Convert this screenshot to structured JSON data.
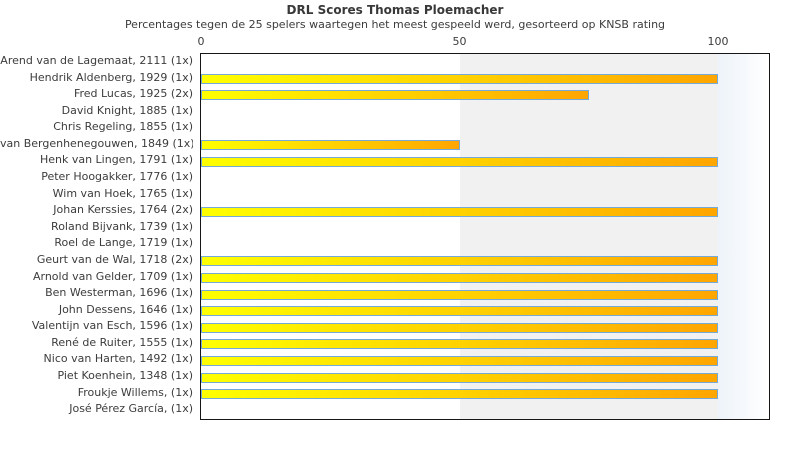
{
  "chart_data": {
    "type": "bar",
    "orientation": "horizontal",
    "title": "DRL Scores Thomas Ploemacher",
    "subtitle": "Percentages tegen de 25 spelers waartegen het meest gespeeld werd, gesorteerd op KNSB rating",
    "xlabel": "",
    "ylabel": "",
    "x_ticks": [
      0,
      50,
      100
    ],
    "xlim": [
      0,
      110
    ],
    "grid": false,
    "legend": false,
    "categories": [
      "Arend van de Lagemaat, 2111 (1x)",
      "Hendrik Aldenberg, 1929 (1x)",
      "Fred Lucas, 1925 (2x)",
      "David Knight, 1885 (1x)",
      "Chris Regeling, 1855 (1x)",
      "van Bergenhenegouwen, 1849 (1x)",
      "Henk van Lingen, 1791 (1x)",
      "Peter Hoogakker, 1776 (1x)",
      "Wim van Hoek, 1765 (1x)",
      "Johan Kerssies, 1764 (2x)",
      "Roland Bijvank, 1739 (1x)",
      "Roel de Lange, 1719 (1x)",
      "Geurt van de Wal, 1718 (2x)",
      "Arnold van Gelder, 1709 (1x)",
      "Ben Westerman, 1696 (1x)",
      "John Dessens, 1646 (1x)",
      "Valentijn van Esch, 1596 (1x)",
      "René de Ruiter, 1555 (1x)",
      "Nico van Harten, 1492 (1x)",
      "Piet Koenhein, 1348 (1x)",
      "Froukje Willems,  (1x)",
      "José Pérez García,  (1x)"
    ],
    "values": [
      0,
      100,
      75,
      0,
      0,
      50,
      100,
      0,
      0,
      100,
      0,
      0,
      100,
      100,
      100,
      100,
      100,
      100,
      100,
      100,
      100,
      0
    ],
    "colors": {
      "bar_gradient_start": "#ffff00",
      "bar_gradient_end": "#ffa500",
      "bar_border": "#74a9d8",
      "band_50_100": "#f1f1f1",
      "plot_border": "#161616",
      "text": "#3c3c3c"
    }
  }
}
